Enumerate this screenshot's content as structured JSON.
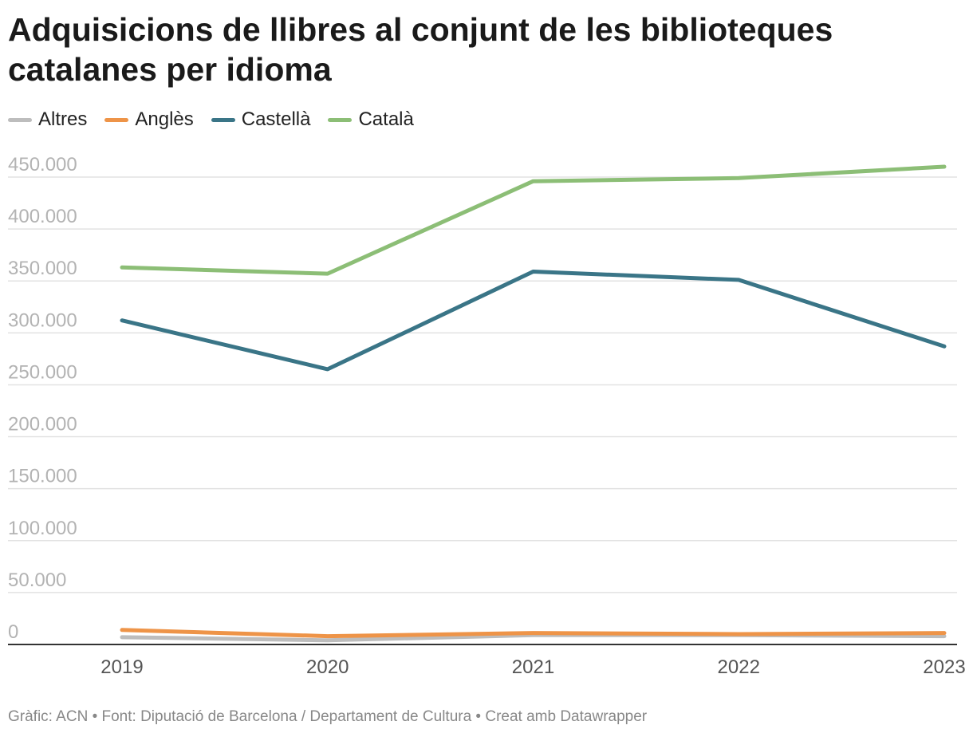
{
  "chart_data": {
    "type": "line",
    "title": "Adquisicions de llibres al conjunt de les biblioteques catalanes per idioma",
    "categories": [
      "2019",
      "2020",
      "2021",
      "2022",
      "2023"
    ],
    "series": [
      {
        "name": "Altres",
        "color": "#bdbdbd",
        "values": [
          7000,
          4000,
          9000,
          9000,
          8000
        ]
      },
      {
        "name": "Anglès",
        "color": "#ee9448",
        "values": [
          14000,
          8000,
          11000,
          10000,
          11000
        ]
      },
      {
        "name": "Castellà",
        "color": "#3a7587",
        "values": [
          312000,
          265000,
          359000,
          351000,
          287000
        ]
      },
      {
        "name": "Català",
        "color": "#8cbe76",
        "values": [
          363000,
          357000,
          446000,
          449000,
          460000
        ]
      }
    ],
    "y_ticks": [
      0,
      50000,
      100000,
      150000,
      200000,
      250000,
      300000,
      350000,
      400000,
      450000
    ],
    "y_tick_labels": [
      "0",
      "50.000",
      "100.000",
      "150.000",
      "200.000",
      "250.000",
      "300.000",
      "350.000",
      "400.000",
      "450.000"
    ],
    "ylim": [
      0,
      450000
    ],
    "xlabel": "",
    "ylabel": "",
    "grid": true,
    "legend_position": "top-left"
  },
  "footer": {
    "text": "Gràfic: ACN • Font: Diputació de Barcelona / Departament de Cultura • Creat amb Datawrapper"
  }
}
